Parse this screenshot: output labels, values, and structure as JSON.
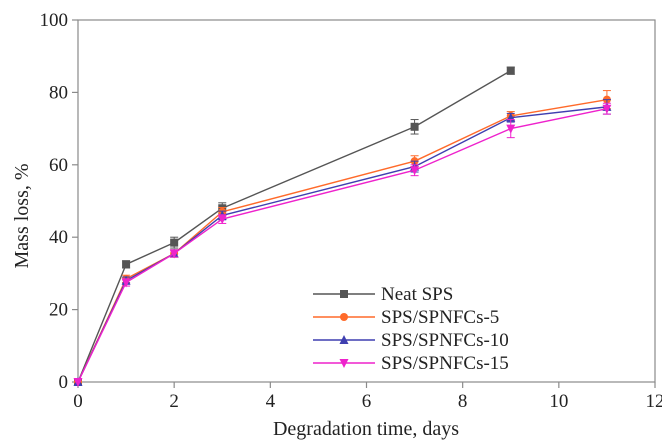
{
  "chart_data": {
    "type": "line",
    "title": "",
    "xlabel": "Degradation time, days",
    "ylabel": "Mass loss, %",
    "xlim": [
      0,
      12
    ],
    "ylim": [
      0,
      100
    ],
    "xticks": [
      "0",
      "2",
      "4",
      "6",
      "8",
      "10",
      "12"
    ],
    "yticks": [
      "0",
      "20",
      "40",
      "60",
      "80",
      "100"
    ],
    "grid": false,
    "legend_position": "bottom-right",
    "series": [
      {
        "name": "Neat SPS",
        "color": "#555555",
        "marker": "square",
        "x": [
          0,
          1,
          2,
          3,
          7,
          9
        ],
        "y": [
          0,
          32.5,
          38.5,
          48,
          70.5,
          86
        ],
        "err": [
          0,
          1,
          1.5,
          1.5,
          2,
          1
        ]
      },
      {
        "name": "SPS/SPNFCs-5",
        "color": "#ff6a2a",
        "marker": "circle",
        "x": [
          0,
          1,
          2,
          3,
          7,
          9,
          11
        ],
        "y": [
          0,
          28.5,
          35.5,
          47,
          61,
          73.5,
          78
        ],
        "err": [
          0,
          1,
          1,
          1.2,
          1.5,
          1.2,
          2.5
        ]
      },
      {
        "name": "SPS/SPNFCs-10",
        "color": "#3f3fb0",
        "marker": "triangle-up",
        "x": [
          0,
          1,
          2,
          3,
          7,
          9,
          11
        ],
        "y": [
          0,
          28,
          35.5,
          46,
          59.5,
          73,
          76
        ],
        "err": [
          0,
          1,
          1,
          1.2,
          1.5,
          1.2,
          2
        ]
      },
      {
        "name": "SPS/SPNFCs-15",
        "color": "#ee22cc",
        "marker": "triangle-down",
        "x": [
          0,
          1,
          2,
          3,
          7,
          9,
          11
        ],
        "y": [
          0,
          27.5,
          35.5,
          45,
          58.5,
          70,
          75.5
        ],
        "err": [
          0,
          1,
          1,
          1.2,
          1.5,
          2.5,
          1.5
        ]
      }
    ]
  }
}
